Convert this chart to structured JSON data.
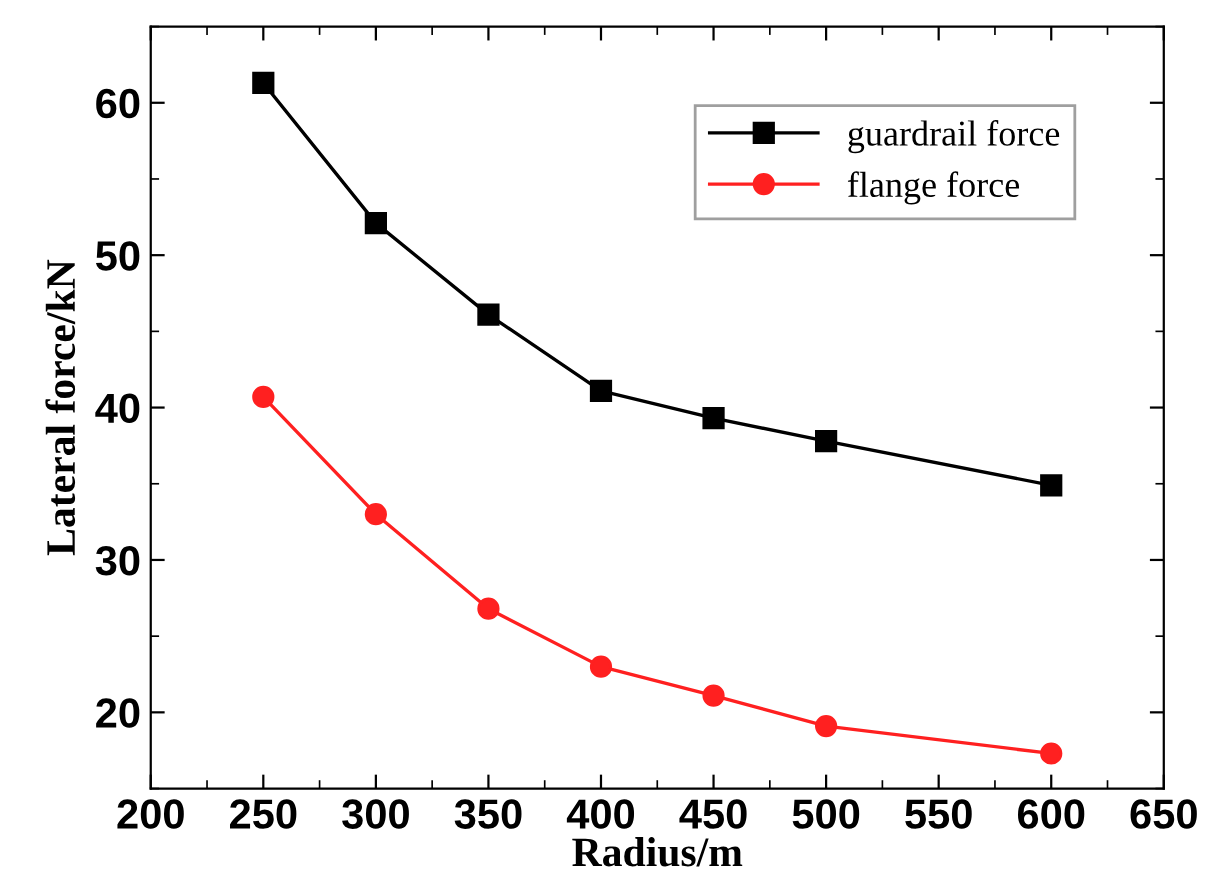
{
  "chart_data": {
    "type": "line",
    "xlabel": "Radius/m",
    "ylabel": "Lateral force/kN",
    "x": [
      250,
      300,
      350,
      400,
      450,
      500,
      600
    ],
    "series": [
      {
        "name": "guardrail force",
        "color": "#000000",
        "marker": "square",
        "values": [
          61.3,
          52.1,
          46.1,
          41.1,
          39.3,
          37.8,
          34.9
        ]
      },
      {
        "name": "flange force",
        "color": "#ff2020",
        "marker": "circle",
        "values": [
          40.7,
          33.0,
          26.8,
          23.0,
          21.1,
          19.1,
          17.3
        ]
      }
    ],
    "xlim": [
      200,
      650
    ],
    "xticks": [
      200,
      250,
      300,
      350,
      400,
      450,
      500,
      550,
      600,
      650
    ],
    "ylim": [
      15,
      65
    ],
    "yticks": [
      20,
      30,
      40,
      50,
      60
    ],
    "legend": "top right",
    "grid": false,
    "line_style": "solid"
  }
}
